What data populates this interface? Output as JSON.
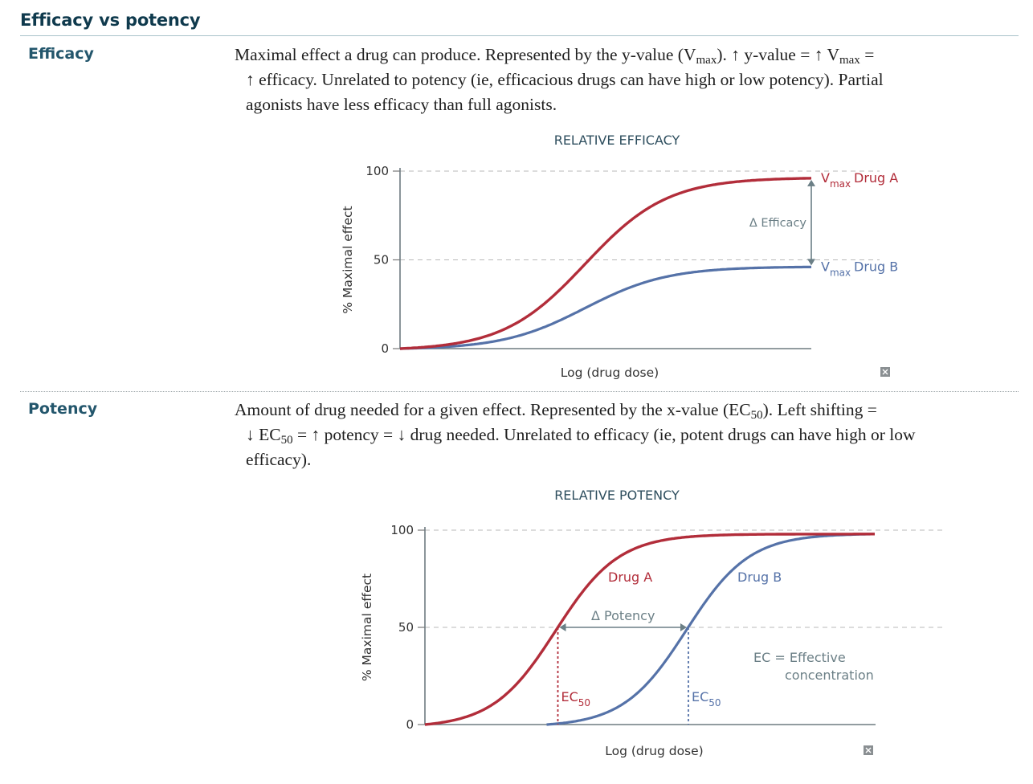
{
  "page": {
    "title": "Efficacy vs potency"
  },
  "sections": {
    "efficacy": {
      "label": "Efficacy",
      "line1_a": "Maximal effect a drug can produce. Represented by the y-value (V",
      "line1_sub1": "max",
      "line1_b": "). ↑ y-value = ↑ V",
      "line1_sub2": "max",
      "line1_c": " =",
      "line2": "↑ efficacy. Unrelated to potency (ie, efficacious drugs can have high or low potency). Partial",
      "line3": "agonists have less efficacy than full agonists."
    },
    "potency": {
      "label": "Potency",
      "line1_a": "Amount of drug needed for a given effect. Represented by the x-value (EC",
      "line1_sub": "50",
      "line1_b": "). Left shifting =",
      "line2_a": "↓ EC",
      "line2_sub": "50",
      "line2_b": " = ↑ potency = ↓ drug needed. Unrelated to efficacy (ie, potent drugs can have high or low",
      "line3": "efficacy)."
    }
  },
  "colors": {
    "drug_a": "#b22d3a",
    "drug_b": "#5572a8",
    "annotation": "#6b7f86",
    "heading": "#0f3a4d",
    "label": "#23566c"
  },
  "chart_data": [
    {
      "type": "line",
      "title": "RELATIVE EFFICACY",
      "xlabel": "Log (drug dose)",
      "ylabel": "% Maximal effect",
      "ylim": [
        0,
        100
      ],
      "yticks": [
        "0",
        "50",
        "100"
      ],
      "grid": "dashed at 50 and 100",
      "series": [
        {
          "name": "Drug A",
          "vmax": 96,
          "ec50_frac": 0.45,
          "slope_frac": 0.1,
          "x_start_frac": 0.0
        },
        {
          "name": "Drug B",
          "vmax": 46,
          "ec50_frac": 0.45,
          "slope_frac": 0.1,
          "x_start_frac": 0.0
        }
      ],
      "annotations": {
        "vmax_prefix": "V",
        "vmax_sub": "max",
        "drug_a": "Drug A",
        "drug_b": "Drug B",
        "delta": "Δ Efficacy"
      }
    },
    {
      "type": "line",
      "title": "RELATIVE POTENCY",
      "xlabel": "Log (drug dose)",
      "ylabel": "% Maximal effect",
      "ylim": [
        0,
        100
      ],
      "yticks": [
        "0",
        "50",
        "100"
      ],
      "grid": "dashed at 50 and 100",
      "series": [
        {
          "name": "Drug A",
          "vmax": 98,
          "ec50_frac": 0.29,
          "slope_frac": 0.07,
          "x_start_frac": 0.0
        },
        {
          "name": "Drug B",
          "vmax": 98,
          "ec50_frac": 0.58,
          "slope_frac": 0.07,
          "x_start_frac": 0.27
        }
      ],
      "annotations": {
        "drug_a": "Drug A",
        "drug_b": "Drug B",
        "delta": "Δ Potency",
        "ec_prefix": "EC",
        "ec_sub": "50",
        "legend_line1": "EC = Effective",
        "legend_line2": "concentration"
      }
    }
  ]
}
